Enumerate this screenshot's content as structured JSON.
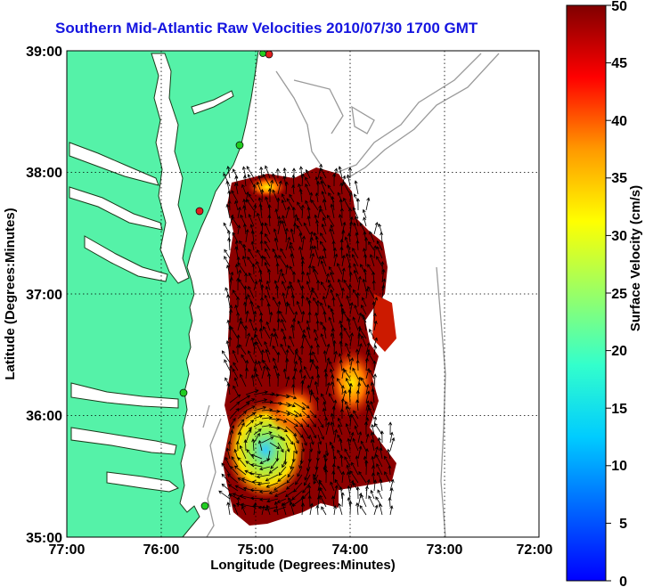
{
  "title": "Southern Mid-Atlantic Raw Velocities 2010/07/30 1700 GMT",
  "map": {
    "xlabel": "Longitude (Degrees:Minutes)",
    "ylabel": "Latitude (Degrees:Minutes)",
    "xticks": [
      "77:00",
      "76:00",
      "75:00",
      "74:00",
      "73:00",
      "72:00"
    ],
    "yticks": [
      "39:00",
      "38:00",
      "37:00",
      "36:00",
      "35:00"
    ],
    "lon_range": [
      -77,
      -72
    ],
    "lat_range": [
      35,
      39
    ],
    "grid": "dotted",
    "land_color": "#55f2a8",
    "contour_color": "#9a9a9a"
  },
  "colorbar": {
    "label": "Surface Velocity (cm/s)",
    "ticks": [
      "50",
      "45",
      "40",
      "35",
      "30",
      "25",
      "20",
      "15",
      "10",
      "5",
      "0"
    ],
    "range": [
      0,
      50
    ],
    "colormap": "jet"
  },
  "stations": {
    "red_count": 2,
    "green_count": 4,
    "red_color": "#e02020",
    "green_color": "#22cc22"
  }
}
